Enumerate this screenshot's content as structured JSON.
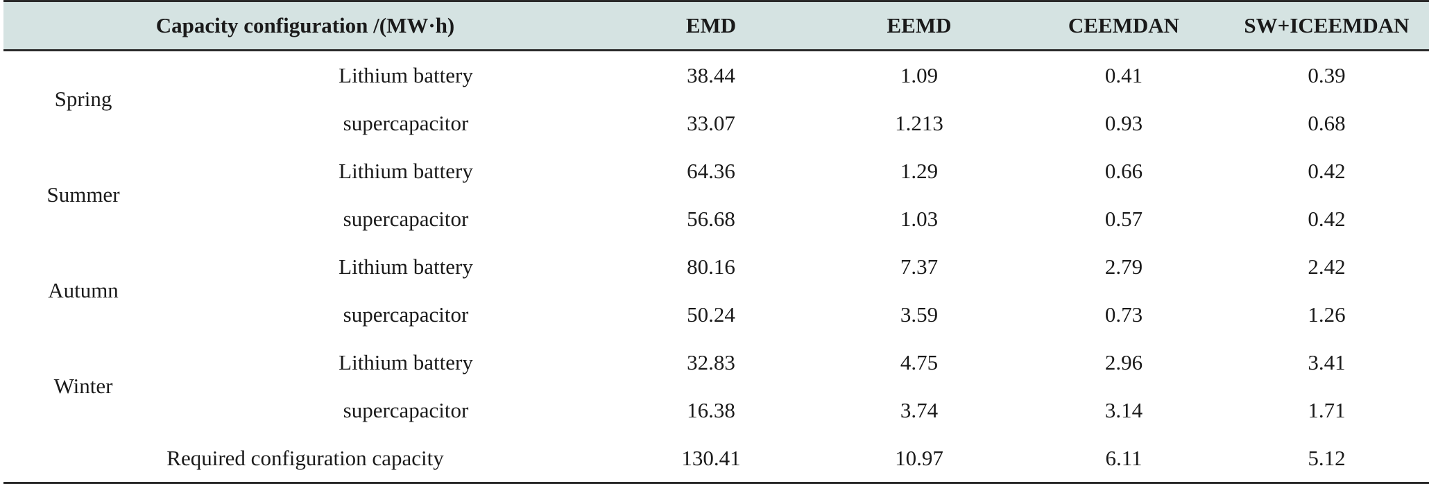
{
  "table": {
    "header": {
      "config_label": "Capacity configuration /(MW·h)",
      "methods": [
        "EMD",
        "EEMD",
        "CEEMDAN",
        "SW+ICEEMDAN"
      ]
    },
    "seasons": [
      {
        "name": "Spring",
        "rows": [
          {
            "type": "Lithium battery",
            "values": [
              "38.44",
              "1.09",
              "0.41",
              "0.39"
            ]
          },
          {
            "type": "supercapacitor",
            "values": [
              "33.07",
              "1.213",
              "0.93",
              "0.68"
            ]
          }
        ]
      },
      {
        "name": "Summer",
        "rows": [
          {
            "type": "Lithium battery",
            "values": [
              "64.36",
              "1.29",
              "0.66",
              "0.42"
            ]
          },
          {
            "type": "supercapacitor",
            "values": [
              "56.68",
              "1.03",
              "0.57",
              "0.42"
            ]
          }
        ]
      },
      {
        "name": "Autumn",
        "rows": [
          {
            "type": "Lithium battery",
            "values": [
              "80.16",
              "7.37",
              "2.79",
              "2.42"
            ]
          },
          {
            "type": "supercapacitor",
            "values": [
              "50.24",
              "3.59",
              "0.73",
              "1.26"
            ]
          }
        ]
      },
      {
        "name": "Winter",
        "rows": [
          {
            "type": "Lithium battery",
            "values": [
              "32.83",
              "4.75",
              "2.96",
              "3.41"
            ]
          },
          {
            "type": "supercapacitor",
            "values": [
              "16.38",
              "3.74",
              "3.14",
              "1.71"
            ]
          }
        ]
      }
    ],
    "total": {
      "label": "Required configuration capacity",
      "values": [
        "130.41",
        "10.97",
        "6.11",
        "5.12"
      ]
    }
  }
}
